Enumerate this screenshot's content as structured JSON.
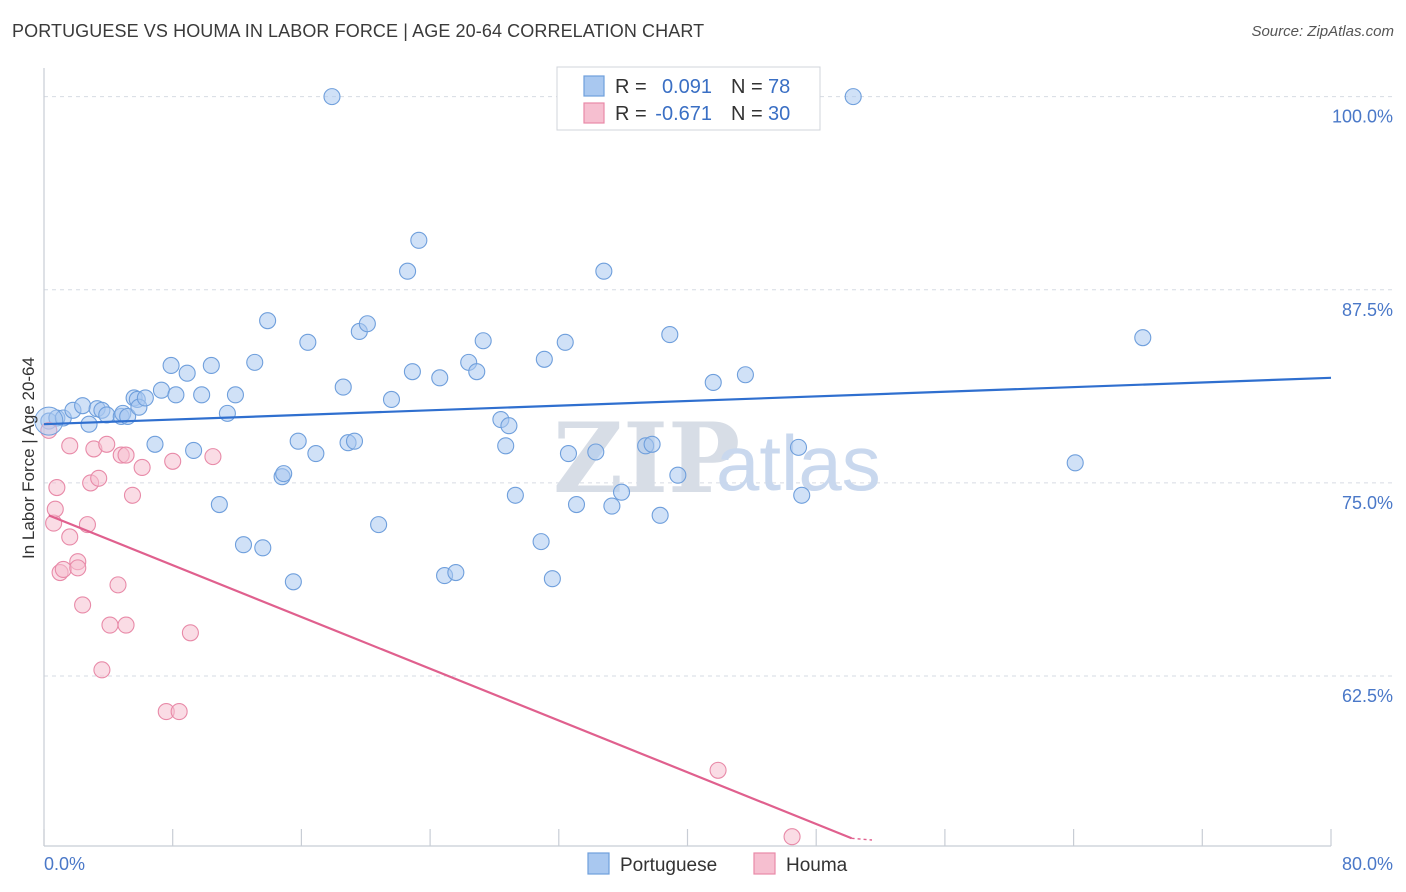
{
  "title": "PORTUGUESE VS HOUMA IN LABOR FORCE | AGE 20-64 CORRELATION CHART",
  "source": "Source: ZipAtlas.com",
  "watermark": {
    "zip": "ZIP",
    "atlas": "atlas"
  },
  "colors": {
    "portuguese_fill": "#a9c8f0",
    "portuguese_stroke": "#6f9fdc",
    "portuguese_line": "#2f6fcf",
    "houma_fill": "#f6bfd0",
    "houma_stroke": "#e88aa8",
    "houma_line": "#e0608e",
    "grid": "#d6dbe3",
    "tick_label": "#4a78c8"
  },
  "legend": {
    "rows": [
      {
        "r_label": "R =",
        "r_value": "0.091",
        "n_label": "N =",
        "n_value": "78"
      },
      {
        "r_label": "R =",
        "r_value": "-0.671",
        "n_label": "N =",
        "n_value": "30"
      }
    ]
  },
  "chart_data": {
    "type": "scatter",
    "ylabel": "In Labor Force | Age 20-64",
    "xlabel": "",
    "xlim": [
      0,
      80
    ],
    "ylim": [
      51.5,
      102.5
    ],
    "x_tick_labels": [
      "0.0%",
      "80.0%"
    ],
    "y_ticks": [
      62.5,
      75.0,
      87.5,
      100.0
    ],
    "y_tick_labels": [
      "62.5%",
      "75.0%",
      "87.5%",
      "100.0%"
    ],
    "grid": true,
    "legend_position": "top-center",
    "series": [
      {
        "name": "Portuguese",
        "trend": {
          "x": [
            0,
            80
          ],
          "y": [
            78.8,
            81.8
          ]
        },
        "points": [
          [
            0.3,
            79.0
          ],
          [
            0.8,
            79.2
          ],
          [
            1.2,
            79.2
          ],
          [
            1.8,
            79.7
          ],
          [
            2.4,
            80.0
          ],
          [
            2.8,
            78.8
          ],
          [
            3.3,
            79.8
          ],
          [
            3.6,
            79.7
          ],
          [
            3.9,
            79.4
          ],
          [
            4.8,
            79.3
          ],
          [
            4.9,
            79.5
          ],
          [
            5.2,
            79.3
          ],
          [
            5.6,
            80.5
          ],
          [
            5.8,
            80.4
          ],
          [
            5.9,
            79.9
          ],
          [
            6.3,
            80.5
          ],
          [
            6.9,
            77.5
          ],
          [
            7.3,
            81.0
          ],
          [
            7.9,
            82.6
          ],
          [
            8.2,
            80.7
          ],
          [
            8.9,
            82.1
          ],
          [
            9.3,
            77.1
          ],
          [
            9.8,
            80.7
          ],
          [
            10.4,
            82.6
          ],
          [
            10.9,
            73.6
          ],
          [
            11.4,
            79.5
          ],
          [
            11.9,
            80.7
          ],
          [
            12.4,
            71.0
          ],
          [
            13.1,
            82.8
          ],
          [
            13.6,
            70.8
          ],
          [
            13.9,
            85.5
          ],
          [
            14.8,
            75.4
          ],
          [
            14.9,
            75.6
          ],
          [
            15.5,
            68.6
          ],
          [
            15.8,
            77.7
          ],
          [
            16.4,
            84.1
          ],
          [
            16.9,
            76.9
          ],
          [
            17.9,
            100.0
          ],
          [
            18.6,
            81.2
          ],
          [
            18.9,
            77.6
          ],
          [
            19.3,
            77.7
          ],
          [
            19.6,
            84.8
          ],
          [
            20.1,
            85.3
          ],
          [
            20.8,
            72.3
          ],
          [
            21.6,
            80.4
          ],
          [
            22.6,
            88.7
          ],
          [
            22.9,
            82.2
          ],
          [
            23.3,
            90.7
          ],
          [
            24.6,
            81.8
          ],
          [
            24.9,
            69.0
          ],
          [
            25.6,
            69.2
          ],
          [
            26.4,
            82.8
          ],
          [
            26.9,
            82.2
          ],
          [
            27.3,
            84.2
          ],
          [
            28.4,
            79.1
          ],
          [
            28.7,
            77.4
          ],
          [
            28.9,
            78.7
          ],
          [
            29.3,
            74.2
          ],
          [
            30.9,
            71.2
          ],
          [
            31.1,
            83.0
          ],
          [
            31.6,
            68.8
          ],
          [
            32.4,
            84.1
          ],
          [
            32.6,
            76.9
          ],
          [
            33.1,
            73.6
          ],
          [
            34.3,
            77.0
          ],
          [
            34.8,
            88.7
          ],
          [
            35.3,
            73.5
          ],
          [
            35.9,
            74.4
          ],
          [
            37.4,
            77.4
          ],
          [
            37.8,
            77.5
          ],
          [
            38.3,
            72.9
          ],
          [
            38.9,
            84.6
          ],
          [
            39.4,
            75.5
          ],
          [
            41.6,
            81.5
          ],
          [
            43.6,
            82.0
          ],
          [
            46.9,
            77.3
          ],
          [
            47.1,
            74.2
          ],
          [
            50.3,
            100.0
          ],
          [
            68.3,
            84.4
          ],
          [
            64.1,
            76.3
          ]
        ]
      },
      {
        "name": "Houma",
        "trend": {
          "x": [
            0.3,
            50.2
          ],
          "y": [
            72.9,
            52.0
          ]
        },
        "points": [
          [
            0.3,
            78.4
          ],
          [
            0.6,
            72.4
          ],
          [
            0.7,
            73.3
          ],
          [
            0.8,
            74.7
          ],
          [
            1.0,
            69.2
          ],
          [
            1.2,
            69.4
          ],
          [
            1.6,
            71.5
          ],
          [
            1.6,
            77.4
          ],
          [
            2.1,
            69.9
          ],
          [
            2.1,
            69.5
          ],
          [
            2.4,
            67.1
          ],
          [
            2.7,
            72.3
          ],
          [
            2.9,
            75.0
          ],
          [
            3.1,
            77.2
          ],
          [
            3.4,
            75.3
          ],
          [
            3.6,
            62.9
          ],
          [
            3.9,
            77.5
          ],
          [
            4.1,
            65.8
          ],
          [
            4.6,
            68.4
          ],
          [
            5.1,
            65.8
          ],
          [
            4.8,
            76.8
          ],
          [
            5.1,
            76.8
          ],
          [
            5.5,
            74.2
          ],
          [
            6.1,
            76.0
          ],
          [
            7.6,
            60.2
          ],
          [
            8.0,
            76.4
          ],
          [
            8.4,
            60.2
          ],
          [
            9.1,
            65.3
          ],
          [
            10.5,
            76.7
          ],
          [
            41.9,
            56.4
          ],
          [
            46.5,
            52.1
          ]
        ]
      }
    ]
  }
}
